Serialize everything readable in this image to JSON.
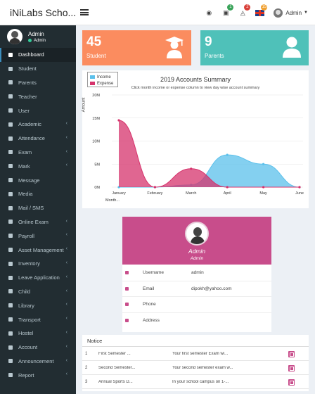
{
  "header": {
    "logo": "iNiLabs Scho...",
    "user_name": "Admin",
    "badges": [
      {
        "icon": "globe-icon",
        "count": null,
        "color": ""
      },
      {
        "icon": "calendar-icon",
        "count": "1",
        "color": "#3aa35a"
      },
      {
        "icon": "bell-icon",
        "count": "2",
        "color": "#d9413a"
      },
      {
        "icon": "flag-uk-icon",
        "count": "15",
        "color": "#f0a030"
      }
    ]
  },
  "sidebar": {
    "user_name": "Admin",
    "user_role": "Admin",
    "items": [
      {
        "label": "Dashboard",
        "icon": "laptop-icon",
        "chevron": false
      },
      {
        "label": "Student",
        "icon": "user-icon",
        "chevron": false
      },
      {
        "label": "Parents",
        "icon": "user-icon",
        "chevron": false
      },
      {
        "label": "Teacher",
        "icon": "user-icon",
        "chevron": false
      },
      {
        "label": "User",
        "icon": "users-icon",
        "chevron": false
      },
      {
        "label": "Academic",
        "icon": "academic-icon",
        "chevron": true
      },
      {
        "label": "Attendance",
        "icon": "attendance-icon",
        "chevron": true
      },
      {
        "label": "Exam",
        "icon": "exam-icon",
        "chevron": true
      },
      {
        "label": "Mark",
        "icon": "mark-icon",
        "chevron": true
      },
      {
        "label": "Message",
        "icon": "message-icon",
        "chevron": false
      },
      {
        "label": "Media",
        "icon": "media-icon",
        "chevron": false
      },
      {
        "label": "Mail / SMS",
        "icon": "mail-icon",
        "chevron": false
      },
      {
        "label": "Online Exam",
        "icon": "online-exam-icon",
        "chevron": true
      },
      {
        "label": "Payroll",
        "icon": "payroll-icon",
        "chevron": true
      },
      {
        "label": "Asset Management",
        "icon": "asset-icon",
        "chevron": true
      },
      {
        "label": "Inventory",
        "icon": "inventory-icon",
        "chevron": true
      },
      {
        "label": "Leave Application",
        "icon": "leave-icon",
        "chevron": true
      },
      {
        "label": "Child",
        "icon": "child-icon",
        "chevron": true
      },
      {
        "label": "Library",
        "icon": "library-icon",
        "chevron": true
      },
      {
        "label": "Transport",
        "icon": "transport-icon",
        "chevron": true
      },
      {
        "label": "Hostel",
        "icon": "hostel-icon",
        "chevron": true
      },
      {
        "label": "Account",
        "icon": "account-icon",
        "chevron": true
      },
      {
        "label": "Announcement",
        "icon": "announcement-icon",
        "chevron": true
      },
      {
        "label": "Report",
        "icon": "report-icon",
        "chevron": true
      }
    ]
  },
  "cards": [
    {
      "value": "45",
      "label": "Student",
      "color": "#fb8c5f",
      "icon": "graduate-icon"
    },
    {
      "value": "9",
      "label": "Parents",
      "color": "#4fc1b9",
      "icon": "user-icon"
    }
  ],
  "chart_data": {
    "type": "area",
    "title": "2019 Accounts Summary",
    "subtitle": "Click month income or expense column to view day wise account summary",
    "ylabel": "Amount",
    "xlabel": "Month",
    "ylim": [
      0,
      20000000
    ],
    "yticks": [
      {
        "value": 0,
        "label": "0M"
      },
      {
        "value": 5000000,
        "label": "5M"
      },
      {
        "value": 10000000,
        "label": "10M"
      },
      {
        "value": 15000000,
        "label": "15M"
      },
      {
        "value": 20000000,
        "label": "20M"
      }
    ],
    "categories": [
      "January",
      "February",
      "March",
      "April",
      "May",
      "June"
    ],
    "legend_position": "top-left",
    "series": [
      {
        "name": "Income",
        "color": "#5bc0eb",
        "values": [
          0,
          0,
          500000,
          7000000,
          5000000,
          0
        ]
      },
      {
        "name": "Expense",
        "color": "#d6336c",
        "values": [
          14500000,
          0,
          4000000,
          0,
          0,
          0
        ]
      }
    ]
  },
  "profile": {
    "name": "Admin",
    "role": "Admin",
    "accent": "#c84d8b",
    "rows": [
      {
        "icon": "user-icon",
        "label": "Username",
        "value": "admin"
      },
      {
        "icon": "envelope-icon",
        "label": "Email",
        "value": "dipokh@yahoo.com"
      },
      {
        "icon": "phone-icon",
        "label": "Phone",
        "value": ""
      },
      {
        "icon": "location-icon",
        "label": "Address",
        "value": ""
      }
    ]
  },
  "notice": {
    "title": "Notice",
    "rows": [
      {
        "index": "1",
        "title": "First Semester ...",
        "body": "Your first semester Exam wi..."
      },
      {
        "index": "2",
        "title": "Second Semester...",
        "body": "Your second semester exam w..."
      },
      {
        "index": "3",
        "title": "Annual Sports D...",
        "body": "In your school campus on 1-..."
      }
    ]
  }
}
